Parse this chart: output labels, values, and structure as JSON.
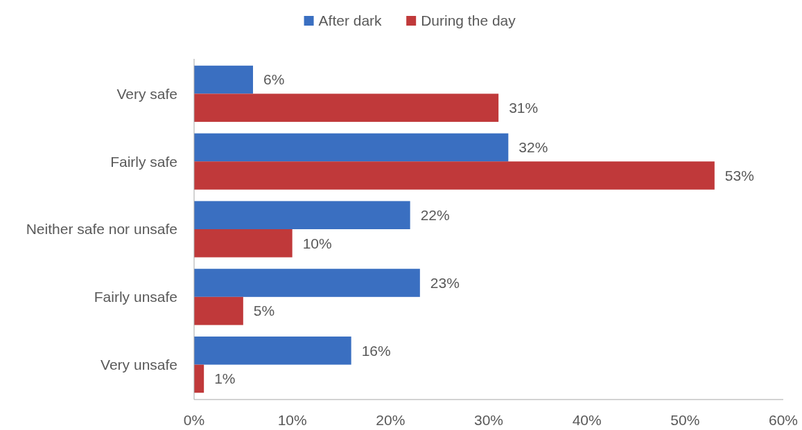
{
  "chart_data": {
    "type": "bar",
    "orientation": "horizontal",
    "categories": [
      "Very safe",
      "Fairly safe",
      "Neither safe nor unsafe",
      "Fairly unsafe",
      "Very unsafe"
    ],
    "series": [
      {
        "name": "After dark",
        "color": "#3a6fc1",
        "values": [
          6,
          32,
          22,
          23,
          16
        ],
        "value_labels": [
          "6%",
          "32%",
          "22%",
          "23%",
          "16%"
        ]
      },
      {
        "name": "During the day",
        "color": "#c0393a",
        "values": [
          31,
          53,
          10,
          5,
          1
        ],
        "value_labels": [
          "31%",
          "53%",
          "10%",
          "5%",
          "1%"
        ]
      }
    ],
    "xlim": [
      0,
      60
    ],
    "xticks": [
      {
        "value": 0,
        "label": "0%"
      },
      {
        "value": 10,
        "label": "10%"
      },
      {
        "value": 20,
        "label": "20%"
      },
      {
        "value": 30,
        "label": "30%"
      },
      {
        "value": 40,
        "label": "40%"
      },
      {
        "value": 50,
        "label": "50%"
      },
      {
        "value": 60,
        "label": "60%"
      }
    ],
    "grid": false,
    "legend": "top"
  }
}
